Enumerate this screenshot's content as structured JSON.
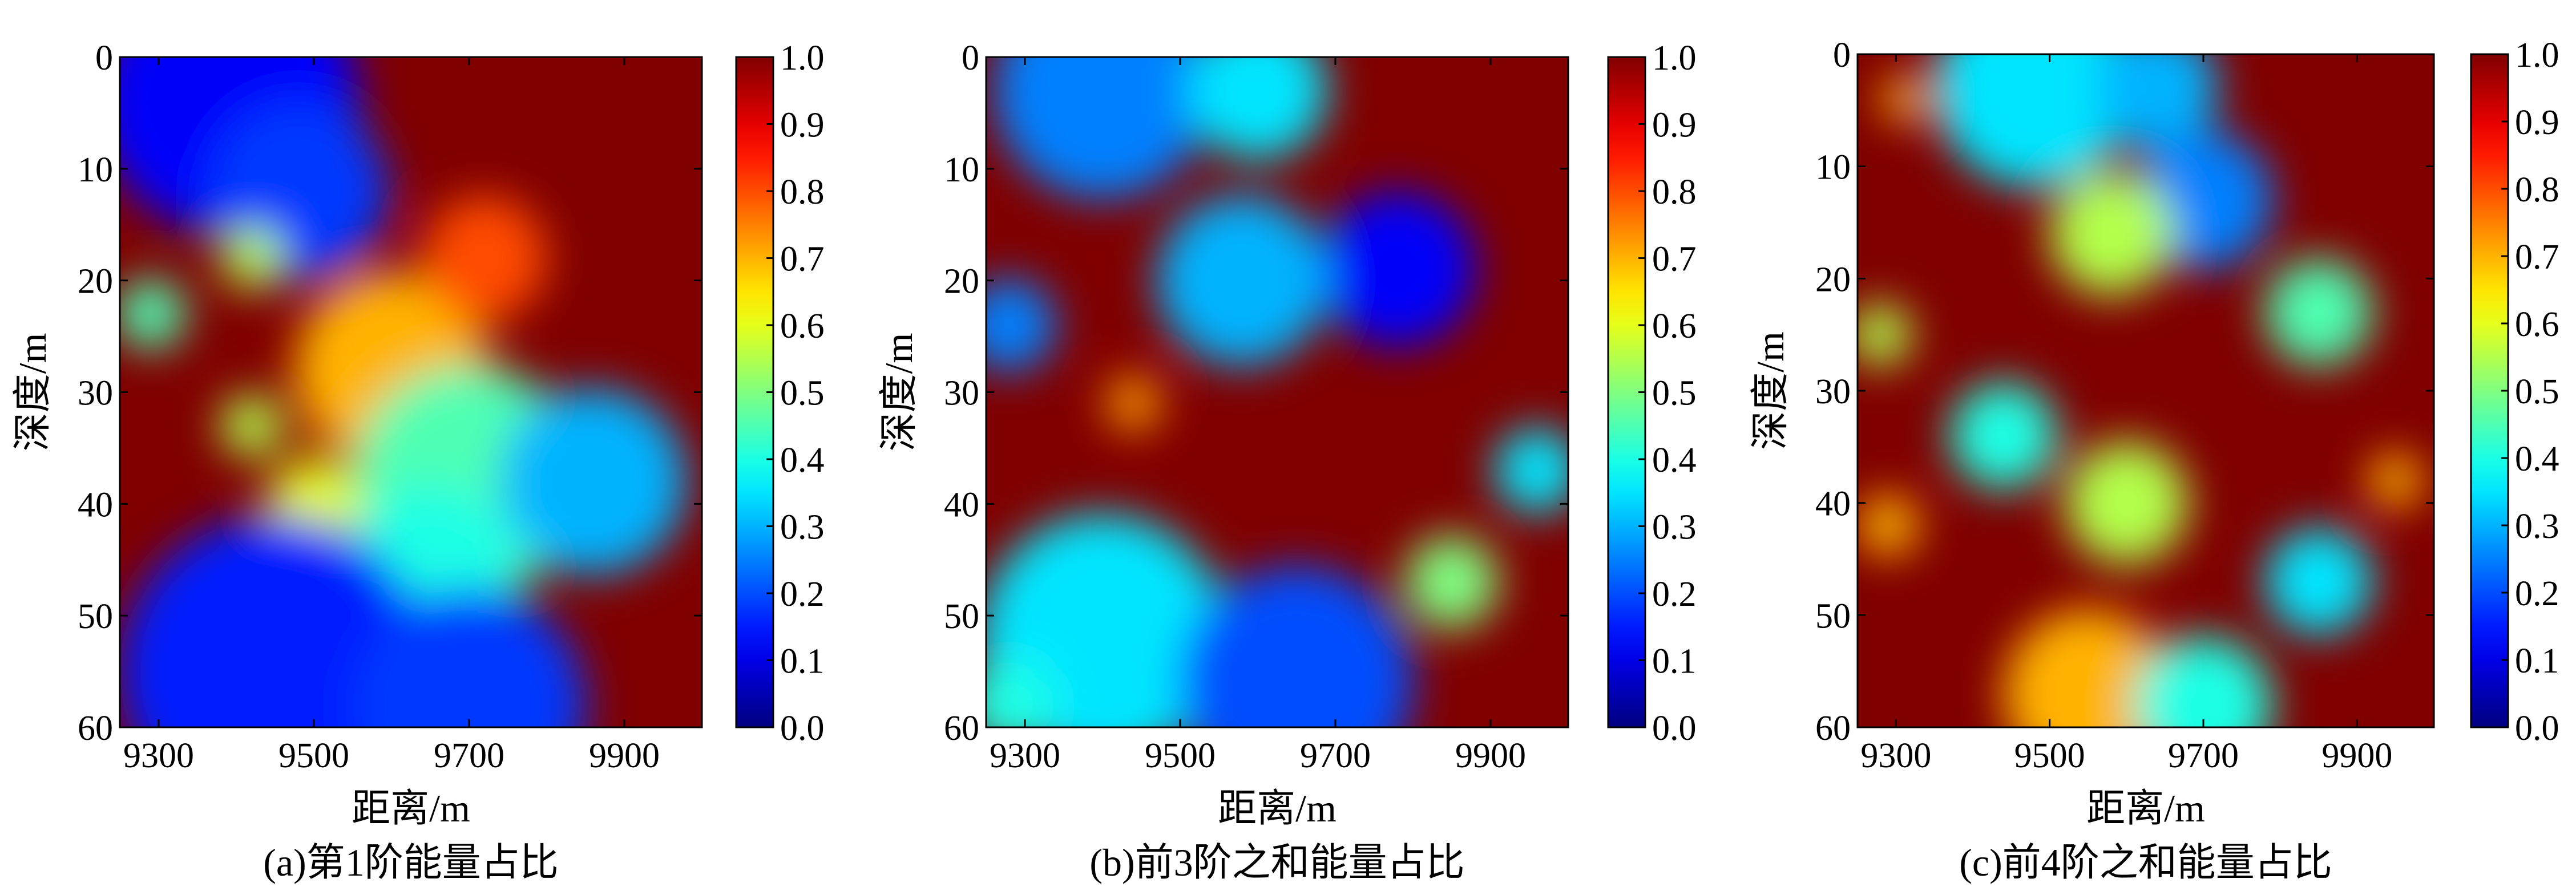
{
  "chart_data": [
    {
      "type": "heatmap",
      "caption": "(a)第1阶能量占比",
      "xlabel": "距离/m",
      "ylabel": "深度/m",
      "xlim": [
        9250,
        10000
      ],
      "ylim": [
        60,
        0
      ],
      "xticks": [
        9300,
        9500,
        9700,
        9900
      ],
      "yticks": [
        0,
        10,
        20,
        30,
        40,
        50,
        60
      ],
      "colorbar": {
        "range": [
          0.0,
          1.0
        ],
        "ticks": [
          "0.0",
          "0.1",
          "0.2",
          "0.3",
          "0.4",
          "0.5",
          "0.6",
          "0.7",
          "0.8",
          "0.9",
          "1.0"
        ],
        "colormap": "jet"
      },
      "features": [
        {
          "x": 9390,
          "y": 4,
          "r": 170,
          "v": 0.12
        },
        {
          "x": 9480,
          "y": 12,
          "r": 115,
          "v": 0.18
        },
        {
          "x": 9600,
          "y": 28,
          "r": 125,
          "v": 0.7
        },
        {
          "x": 9700,
          "y": 38,
          "r": 150,
          "v": 0.45
        },
        {
          "x": 9860,
          "y": 38,
          "r": 120,
          "v": 0.3
        },
        {
          "x": 9290,
          "y": 23,
          "r": 45,
          "v": 0.45
        },
        {
          "x": 9420,
          "y": 18,
          "r": 40,
          "v": 0.55
        },
        {
          "x": 9420,
          "y": 33,
          "r": 40,
          "v": 0.55
        },
        {
          "x": 9500,
          "y": 40,
          "r": 60,
          "v": 0.6
        },
        {
          "x": 9650,
          "y": 46,
          "r": 110,
          "v": 0.4
        },
        {
          "x": 9720,
          "y": 18,
          "r": 80,
          "v": 0.8
        },
        {
          "x": 9450,
          "y": 55,
          "r": 200,
          "v": 0.15
        },
        {
          "x": 9700,
          "y": 58,
          "r": 150,
          "v": 0.18
        }
      ]
    },
    {
      "type": "heatmap",
      "caption": "(b)前3阶之和能量占比",
      "xlabel": "距离/m",
      "ylabel": "深度/m",
      "xlim": [
        9250,
        10000
      ],
      "ylim": [
        60,
        0
      ],
      "xticks": [
        9300,
        9500,
        9700,
        9900
      ],
      "yticks": [
        0,
        10,
        20,
        30,
        40,
        50,
        60
      ],
      "colorbar": {
        "range": [
          0.0,
          1.0
        ],
        "ticks": [
          "0.0",
          "0.1",
          "0.2",
          "0.3",
          "0.4",
          "0.5",
          "0.6",
          "0.7",
          "0.8",
          "0.9",
          "1.0"
        ],
        "colormap": "jet"
      },
      "features": [
        {
          "x": 9400,
          "y": 3,
          "r": 140,
          "v": 0.25
        },
        {
          "x": 9600,
          "y": 3,
          "r": 90,
          "v": 0.35
        },
        {
          "x": 9780,
          "y": 19,
          "r": 100,
          "v": 0.12
        },
        {
          "x": 9580,
          "y": 20,
          "r": 110,
          "v": 0.3
        },
        {
          "x": 9280,
          "y": 24,
          "r": 60,
          "v": 0.25
        },
        {
          "x": 9440,
          "y": 31,
          "r": 35,
          "v": 0.72
        },
        {
          "x": 9960,
          "y": 37,
          "r": 55,
          "v": 0.35
        },
        {
          "x": 9400,
          "y": 52,
          "r": 160,
          "v": 0.35
        },
        {
          "x": 9650,
          "y": 56,
          "r": 150,
          "v": 0.2
        },
        {
          "x": 9850,
          "y": 47,
          "r": 60,
          "v": 0.5
        },
        {
          "x": 9280,
          "y": 58,
          "r": 60,
          "v": 0.4
        }
      ]
    },
    {
      "type": "heatmap",
      "caption": "(c)前4阶之和能量占比",
      "xlabel": "距离/m",
      "ylabel": "深度/m",
      "xlim": [
        9250,
        10000
      ],
      "ylim": [
        60,
        0
      ],
      "xticks": [
        9300,
        9500,
        9700,
        9900
      ],
      "yticks": [
        0,
        10,
        20,
        30,
        40,
        50,
        60
      ],
      "colorbar": {
        "range": [
          0.0,
          1.0
        ],
        "ticks": [
          "0.0",
          "0.1",
          "0.2",
          "0.3",
          "0.4",
          "0.5",
          "0.6",
          "0.7",
          "0.8",
          "0.9",
          "1.0"
        ],
        "colormap": "jet"
      },
      "features": [
        {
          "x": 9480,
          "y": 3,
          "r": 130,
          "v": 0.35
        },
        {
          "x": 9640,
          "y": 3,
          "r": 80,
          "v": 0.3
        },
        {
          "x": 9310,
          "y": 4,
          "r": 30,
          "v": 0.7
        },
        {
          "x": 9700,
          "y": 13,
          "r": 90,
          "v": 0.25
        },
        {
          "x": 9580,
          "y": 16,
          "r": 80,
          "v": 0.55
        },
        {
          "x": 9850,
          "y": 23,
          "r": 70,
          "v": 0.45
        },
        {
          "x": 9280,
          "y": 25,
          "r": 40,
          "v": 0.55
        },
        {
          "x": 9440,
          "y": 34,
          "r": 70,
          "v": 0.4
        },
        {
          "x": 9600,
          "y": 40,
          "r": 80,
          "v": 0.55
        },
        {
          "x": 9850,
          "y": 47,
          "r": 70,
          "v": 0.35
        },
        {
          "x": 9950,
          "y": 38,
          "r": 35,
          "v": 0.7
        },
        {
          "x": 9550,
          "y": 57,
          "r": 110,
          "v": 0.7
        },
        {
          "x": 9700,
          "y": 58,
          "r": 90,
          "v": 0.4
        },
        {
          "x": 9290,
          "y": 42,
          "r": 40,
          "v": 0.7
        }
      ]
    }
  ]
}
